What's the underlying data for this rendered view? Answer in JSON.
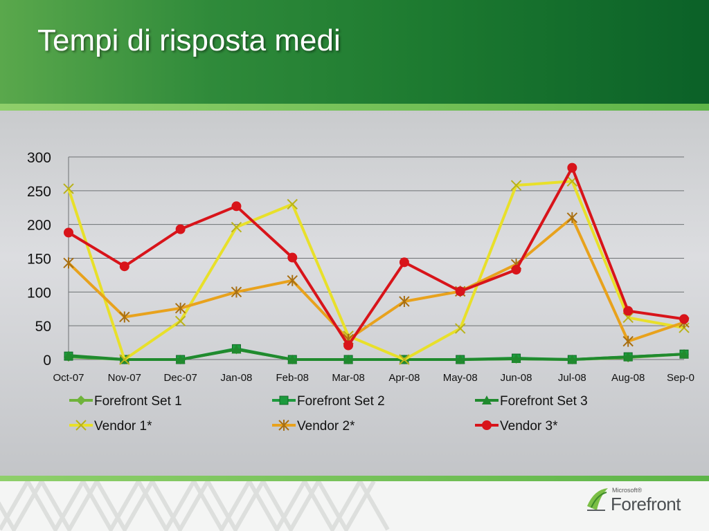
{
  "slide": {
    "title": "Tempi di risposta medi"
  },
  "logo": {
    "vendor": "Microsoft®",
    "product": "Forefront"
  },
  "chart_data": {
    "type": "line",
    "title": "",
    "xlabel": "",
    "ylabel": "",
    "ylim": [
      0,
      300
    ],
    "yticks": [
      "0",
      "50",
      "100",
      "150",
      "200",
      "250",
      "300"
    ],
    "categories": [
      "Oct-07",
      "Nov-07",
      "Dec-07",
      "Jan-08",
      "Feb-08",
      "Mar-08",
      "Apr-08",
      "May-08",
      "Jun-08",
      "Jul-08",
      "Aug-08",
      "Sep-0"
    ],
    "grid": true,
    "legend_position": "bottom",
    "series": [
      {
        "name": "Forefront Set 1",
        "color": "#6fb33b",
        "marker": "diamond",
        "values": [
          4,
          0,
          0,
          15,
          0,
          0,
          0,
          0,
          1,
          0,
          3,
          8
        ]
      },
      {
        "name": "Forefront Set 2",
        "color": "#1c9a3d",
        "marker": "square",
        "values": [
          5,
          0,
          0,
          16,
          0,
          0,
          0,
          0,
          2,
          0,
          4,
          8
        ]
      },
      {
        "name": "Forefront Set 3",
        "color": "#208a2e",
        "marker": "triangle",
        "values": [
          6,
          0,
          0,
          15,
          0,
          0,
          0,
          0,
          1,
          0,
          4,
          8
        ]
      },
      {
        "name": "Vendor 1*",
        "color": "#e8e02a",
        "marker": "x",
        "values": [
          253,
          0,
          57,
          196,
          230,
          35,
          0,
          46,
          258,
          264,
          62,
          47
        ]
      },
      {
        "name": "Vendor 2*",
        "color": "#e8a21d",
        "marker": "star",
        "values": [
          143,
          63,
          76,
          100,
          117,
          30,
          86,
          101,
          141,
          210,
          27,
          55
        ]
      },
      {
        "name": "Vendor 3*",
        "color": "#d8141a",
        "marker": "circle",
        "values": [
          188,
          138,
          193,
          227,
          151,
          21,
          144,
          101,
          133,
          284,
          72,
          60
        ]
      }
    ]
  }
}
